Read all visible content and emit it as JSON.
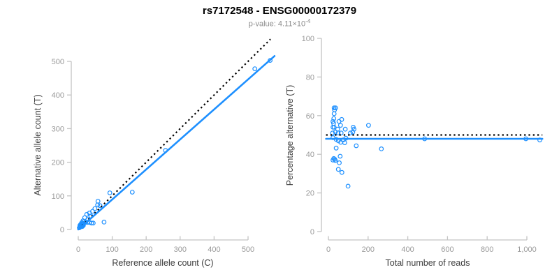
{
  "header": {
    "title": "rs7172548 - ENSG00000172379",
    "pvalue_prefix": "p-value: 4.11×10",
    "pvalue_exponent": "-4"
  },
  "colors": {
    "accent": "#1E90FF",
    "dotted_line": "#000000",
    "tick_label": "#999999",
    "axis_line": "#C4C4C4",
    "axis_title": "#3D3D3D",
    "subtitle": "#8C8C8C",
    "background": "#FFFFFF"
  },
  "chart_data": [
    {
      "type": "scatter",
      "name": "allele-counts",
      "xlabel": "Reference allele count (C)",
      "ylabel": "Alternative allele count (T)",
      "xlim": [
        0,
        500
      ],
      "ylim": [
        0,
        500
      ],
      "xticks": {
        "values": [
          0,
          100,
          200,
          300,
          400,
          500
        ],
        "labels": [
          "0",
          "100",
          "200",
          "300",
          "400",
          "500"
        ]
      },
      "yticks": {
        "values": [
          0,
          100,
          200,
          300,
          400,
          500
        ],
        "labels": [
          "0",
          "100",
          "200",
          "300",
          "400",
          "500"
        ]
      },
      "grid": false,
      "point_color": "#1E90FF",
      "points": [
        [
          565,
          503
        ],
        [
          520,
          478
        ],
        [
          257,
          235
        ],
        [
          159,
          111
        ],
        [
          93,
          109
        ],
        [
          58,
          84
        ],
        [
          64,
          71
        ],
        [
          57,
          73
        ],
        [
          49,
          62
        ],
        [
          42,
          54
        ],
        [
          33,
          49
        ],
        [
          25,
          45
        ],
        [
          37,
          40
        ],
        [
          19,
          35
        ],
        [
          28,
          30
        ],
        [
          14,
          26
        ],
        [
          21,
          21
        ],
        [
          27,
          21
        ],
        [
          33,
          21
        ],
        [
          39,
          19
        ],
        [
          44,
          19
        ],
        [
          76,
          22
        ],
        [
          3,
          5
        ],
        [
          5,
          8
        ],
        [
          7,
          11
        ],
        [
          9,
          14
        ],
        [
          11,
          17
        ],
        [
          5,
          12
        ],
        [
          8,
          8
        ],
        [
          11,
          11
        ],
        [
          13,
          15
        ],
        [
          7,
          15
        ],
        [
          10,
          20
        ],
        [
          13,
          13
        ],
        [
          16,
          18
        ],
        [
          15,
          12
        ],
        [
          18,
          24
        ],
        [
          12,
          9
        ]
      ],
      "lines": [
        {
          "name": "identity-line",
          "style": "dotted",
          "color": "#000000",
          "from": [
            2,
            2
          ],
          "to": [
            566,
            566
          ]
        },
        {
          "name": "fit-line",
          "style": "solid",
          "color": "#1E90FF",
          "from": [
            0,
            0
          ],
          "to": [
            578,
            516
          ]
        }
      ]
    },
    {
      "type": "scatter",
      "name": "percentage-alternative",
      "xlabel": "Total number of reads",
      "ylabel": "Percentage alternative (T)",
      "xlim": [
        0,
        1000
      ],
      "ylim": [
        0,
        100
      ],
      "xticks": {
        "values": [
          0,
          200,
          400,
          600,
          800,
          1000
        ],
        "labels": [
          "0",
          "200",
          "400",
          "600",
          "800",
          "1,000"
        ]
      },
      "yticks": {
        "values": [
          0,
          20,
          40,
          60,
          80,
          100
        ],
        "labels": [
          "0",
          "20",
          "40",
          "60",
          "80",
          "100"
        ]
      },
      "grid": false,
      "point_color": "#1E90FF",
      "points": [
        [
          29,
          64
        ],
        [
          36,
          64
        ],
        [
          31,
          63
        ],
        [
          29,
          61
        ],
        [
          27,
          58.5
        ],
        [
          67,
          58
        ],
        [
          23,
          57
        ],
        [
          26,
          56
        ],
        [
          53,
          57
        ],
        [
          61,
          55
        ],
        [
          29,
          54
        ],
        [
          23,
          54
        ],
        [
          47,
          53
        ],
        [
          85,
          53
        ],
        [
          125,
          54
        ],
        [
          129,
          53
        ],
        [
          202,
          55
        ],
        [
          35,
          51.5
        ],
        [
          64,
          51
        ],
        [
          123,
          51.5
        ],
        [
          21,
          51
        ],
        [
          49,
          51
        ],
        [
          111,
          51
        ],
        [
          23,
          48.6
        ],
        [
          39,
          47.7
        ],
        [
          50,
          47
        ],
        [
          74,
          47.4
        ],
        [
          88,
          48.3
        ],
        [
          62,
          46.2
        ],
        [
          82,
          46
        ],
        [
          140,
          44.4
        ],
        [
          39,
          43.2
        ],
        [
          59,
          39
        ],
        [
          27,
          37.8
        ],
        [
          32,
          37.4
        ],
        [
          23,
          37
        ],
        [
          35,
          36.8
        ],
        [
          55,
          35.6
        ],
        [
          50,
          32.2
        ],
        [
          68,
          30.6
        ],
        [
          267,
          42.8
        ],
        [
          99,
          23.5
        ],
        [
          485,
          48
        ],
        [
          995,
          48
        ],
        [
          1065,
          47.4
        ]
      ],
      "lines": [
        {
          "name": "expected-line",
          "style": "dotted",
          "color": "#000000",
          "from": [
            -12,
            50
          ],
          "to": [
            1078,
            50
          ]
        },
        {
          "name": "fit-line",
          "style": "solid",
          "color": "#1E90FF",
          "from": [
            -12,
            48
          ],
          "to": [
            1078,
            48
          ]
        }
      ]
    }
  ]
}
